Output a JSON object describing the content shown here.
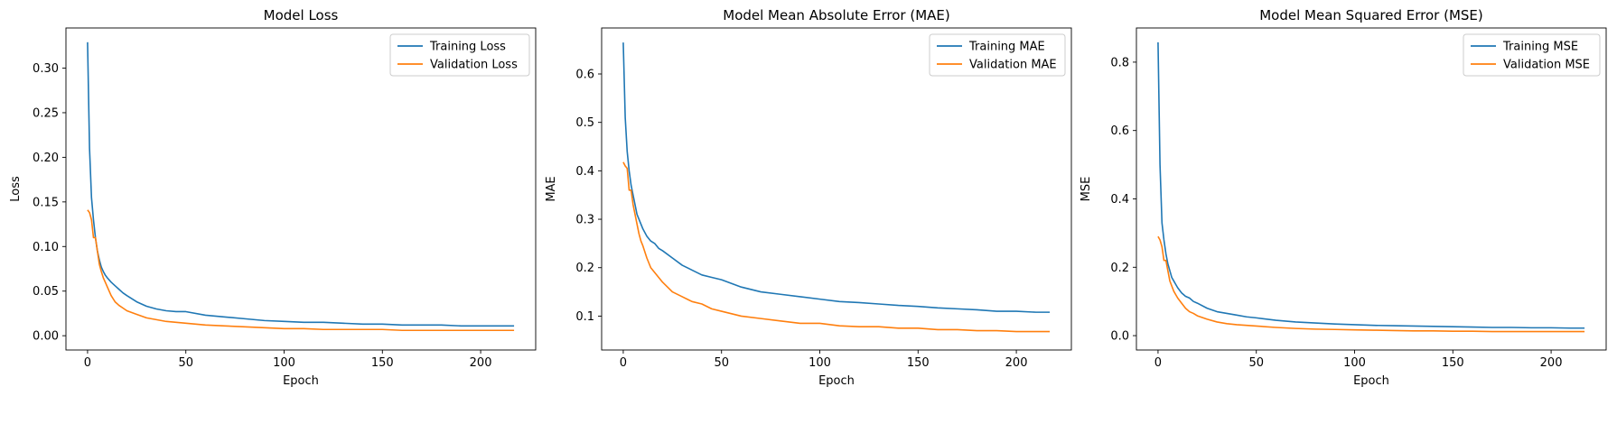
{
  "colors": {
    "training": "#1f77b4",
    "validation": "#ff7f0e"
  },
  "chart_data": [
    {
      "type": "line",
      "title": "Model Loss",
      "xlabel": "Epoch",
      "ylabel": "Loss",
      "xlim": [
        -11,
        228
      ],
      "ylim": [
        -0.016,
        0.345
      ],
      "xticks": [
        0,
        50,
        100,
        150,
        200
      ],
      "yticks": [
        0.0,
        0.05,
        0.1,
        0.15,
        0.2,
        0.25,
        0.3
      ],
      "ytick_labels": [
        "0.00",
        "0.05",
        "0.10",
        "0.15",
        "0.20",
        "0.25",
        "0.30"
      ],
      "grid": false,
      "legend_position": "upper right",
      "series": [
        {
          "name": "Training Loss",
          "x": [
            0,
            1,
            2,
            3,
            4,
            5,
            6,
            7,
            8,
            9,
            10,
            12,
            14,
            16,
            18,
            20,
            25,
            30,
            35,
            40,
            45,
            50,
            60,
            70,
            80,
            90,
            100,
            110,
            120,
            130,
            140,
            150,
            160,
            170,
            180,
            190,
            200,
            210,
            217
          ],
          "values": [
            0.329,
            0.21,
            0.155,
            0.13,
            0.11,
            0.095,
            0.085,
            0.077,
            0.072,
            0.068,
            0.065,
            0.06,
            0.056,
            0.052,
            0.048,
            0.045,
            0.038,
            0.033,
            0.03,
            0.028,
            0.027,
            0.027,
            0.023,
            0.021,
            0.019,
            0.017,
            0.016,
            0.015,
            0.015,
            0.014,
            0.013,
            0.013,
            0.012,
            0.012,
            0.012,
            0.011,
            0.011,
            0.011,
            0.011
          ]
        },
        {
          "name": "Validation Loss",
          "x": [
            0,
            1,
            2,
            3,
            4,
            5,
            6,
            7,
            8,
            9,
            10,
            12,
            14,
            16,
            18,
            20,
            25,
            30,
            35,
            40,
            45,
            50,
            60,
            70,
            80,
            90,
            100,
            110,
            120,
            130,
            140,
            150,
            160,
            170,
            180,
            190,
            200,
            210,
            217
          ],
          "values": [
            0.141,
            0.138,
            0.13,
            0.11,
            0.11,
            0.095,
            0.08,
            0.072,
            0.065,
            0.06,
            0.055,
            0.045,
            0.038,
            0.034,
            0.031,
            0.028,
            0.024,
            0.02,
            0.018,
            0.016,
            0.015,
            0.014,
            0.012,
            0.011,
            0.01,
            0.009,
            0.008,
            0.008,
            0.007,
            0.007,
            0.007,
            0.007,
            0.006,
            0.006,
            0.006,
            0.006,
            0.006,
            0.006,
            0.006
          ]
        }
      ]
    },
    {
      "type": "line",
      "title": "Model Mean Absolute Error (MAE)",
      "xlabel": "Epoch",
      "ylabel": "MAE",
      "xlim": [
        -11,
        228
      ],
      "ylim": [
        0.03,
        0.695
      ],
      "xticks": [
        0,
        50,
        100,
        150,
        200
      ],
      "yticks": [
        0.1,
        0.2,
        0.3,
        0.4,
        0.5,
        0.6
      ],
      "ytick_labels": [
        "0.1",
        "0.2",
        "0.3",
        "0.4",
        "0.5",
        "0.6"
      ],
      "grid": false,
      "legend_position": "upper right",
      "series": [
        {
          "name": "Training MAE",
          "x": [
            0,
            1,
            2,
            3,
            4,
            5,
            6,
            7,
            8,
            9,
            10,
            12,
            14,
            16,
            18,
            20,
            25,
            30,
            35,
            40,
            45,
            50,
            60,
            70,
            80,
            90,
            100,
            110,
            120,
            130,
            140,
            150,
            160,
            170,
            180,
            190,
            200,
            210,
            217
          ],
          "values": [
            0.665,
            0.51,
            0.44,
            0.4,
            0.37,
            0.35,
            0.33,
            0.31,
            0.3,
            0.29,
            0.28,
            0.265,
            0.255,
            0.25,
            0.24,
            0.235,
            0.22,
            0.205,
            0.195,
            0.185,
            0.18,
            0.175,
            0.16,
            0.15,
            0.145,
            0.14,
            0.135,
            0.13,
            0.128,
            0.125,
            0.122,
            0.12,
            0.117,
            0.115,
            0.113,
            0.11,
            0.11,
            0.108,
            0.108
          ]
        },
        {
          "name": "Validation MAE",
          "x": [
            0,
            1,
            2,
            3,
            4,
            5,
            6,
            7,
            8,
            9,
            10,
            12,
            14,
            16,
            18,
            20,
            25,
            30,
            35,
            40,
            45,
            50,
            60,
            70,
            80,
            90,
            100,
            110,
            120,
            130,
            140,
            150,
            160,
            170,
            180,
            190,
            200,
            210,
            217
          ],
          "values": [
            0.418,
            0.41,
            0.405,
            0.36,
            0.36,
            0.33,
            0.31,
            0.29,
            0.27,
            0.255,
            0.245,
            0.22,
            0.2,
            0.19,
            0.18,
            0.17,
            0.15,
            0.14,
            0.13,
            0.125,
            0.115,
            0.11,
            0.1,
            0.095,
            0.09,
            0.085,
            0.085,
            0.08,
            0.078,
            0.078,
            0.075,
            0.075,
            0.072,
            0.072,
            0.07,
            0.07,
            0.068,
            0.068,
            0.068
          ]
        }
      ]
    },
    {
      "type": "line",
      "title": "Model Mean Squared Error (MSE)",
      "xlabel": "Epoch",
      "ylabel": "MSE",
      "xlim": [
        -11,
        228
      ],
      "ylim": [
        -0.042,
        0.9
      ],
      "xticks": [
        0,
        50,
        100,
        150,
        200
      ],
      "yticks": [
        0.0,
        0.2,
        0.4,
        0.6,
        0.8
      ],
      "ytick_labels": [
        "0.0",
        "0.2",
        "0.4",
        "0.6",
        "0.8"
      ],
      "grid": false,
      "legend_position": "upper right",
      "series": [
        {
          "name": "Training MSE",
          "x": [
            0,
            1,
            2,
            3,
            4,
            5,
            6,
            7,
            8,
            9,
            10,
            12,
            14,
            16,
            18,
            20,
            25,
            30,
            35,
            40,
            45,
            50,
            60,
            70,
            80,
            90,
            100,
            110,
            120,
            130,
            140,
            150,
            160,
            170,
            180,
            190,
            200,
            210,
            217
          ],
          "values": [
            0.858,
            0.5,
            0.33,
            0.28,
            0.24,
            0.21,
            0.19,
            0.17,
            0.16,
            0.15,
            0.14,
            0.125,
            0.115,
            0.11,
            0.1,
            0.095,
            0.08,
            0.07,
            0.065,
            0.06,
            0.055,
            0.052,
            0.045,
            0.04,
            0.037,
            0.034,
            0.032,
            0.03,
            0.029,
            0.028,
            0.027,
            0.026,
            0.025,
            0.024,
            0.024,
            0.023,
            0.023,
            0.022,
            0.022
          ]
        },
        {
          "name": "Validation MSE",
          "x": [
            0,
            1,
            2,
            3,
            4,
            5,
            6,
            7,
            8,
            9,
            10,
            12,
            14,
            16,
            18,
            20,
            25,
            30,
            35,
            40,
            45,
            50,
            60,
            70,
            80,
            90,
            100,
            110,
            120,
            130,
            140,
            150,
            160,
            170,
            180,
            190,
            200,
            210,
            217
          ],
          "values": [
            0.29,
            0.28,
            0.26,
            0.22,
            0.22,
            0.19,
            0.16,
            0.145,
            0.13,
            0.12,
            0.11,
            0.095,
            0.08,
            0.07,
            0.065,
            0.058,
            0.048,
            0.04,
            0.035,
            0.032,
            0.03,
            0.028,
            0.024,
            0.021,
            0.019,
            0.018,
            0.017,
            0.016,
            0.015,
            0.014,
            0.014,
            0.013,
            0.013,
            0.012,
            0.012,
            0.012,
            0.012,
            0.012,
            0.012
          ]
        }
      ]
    }
  ]
}
